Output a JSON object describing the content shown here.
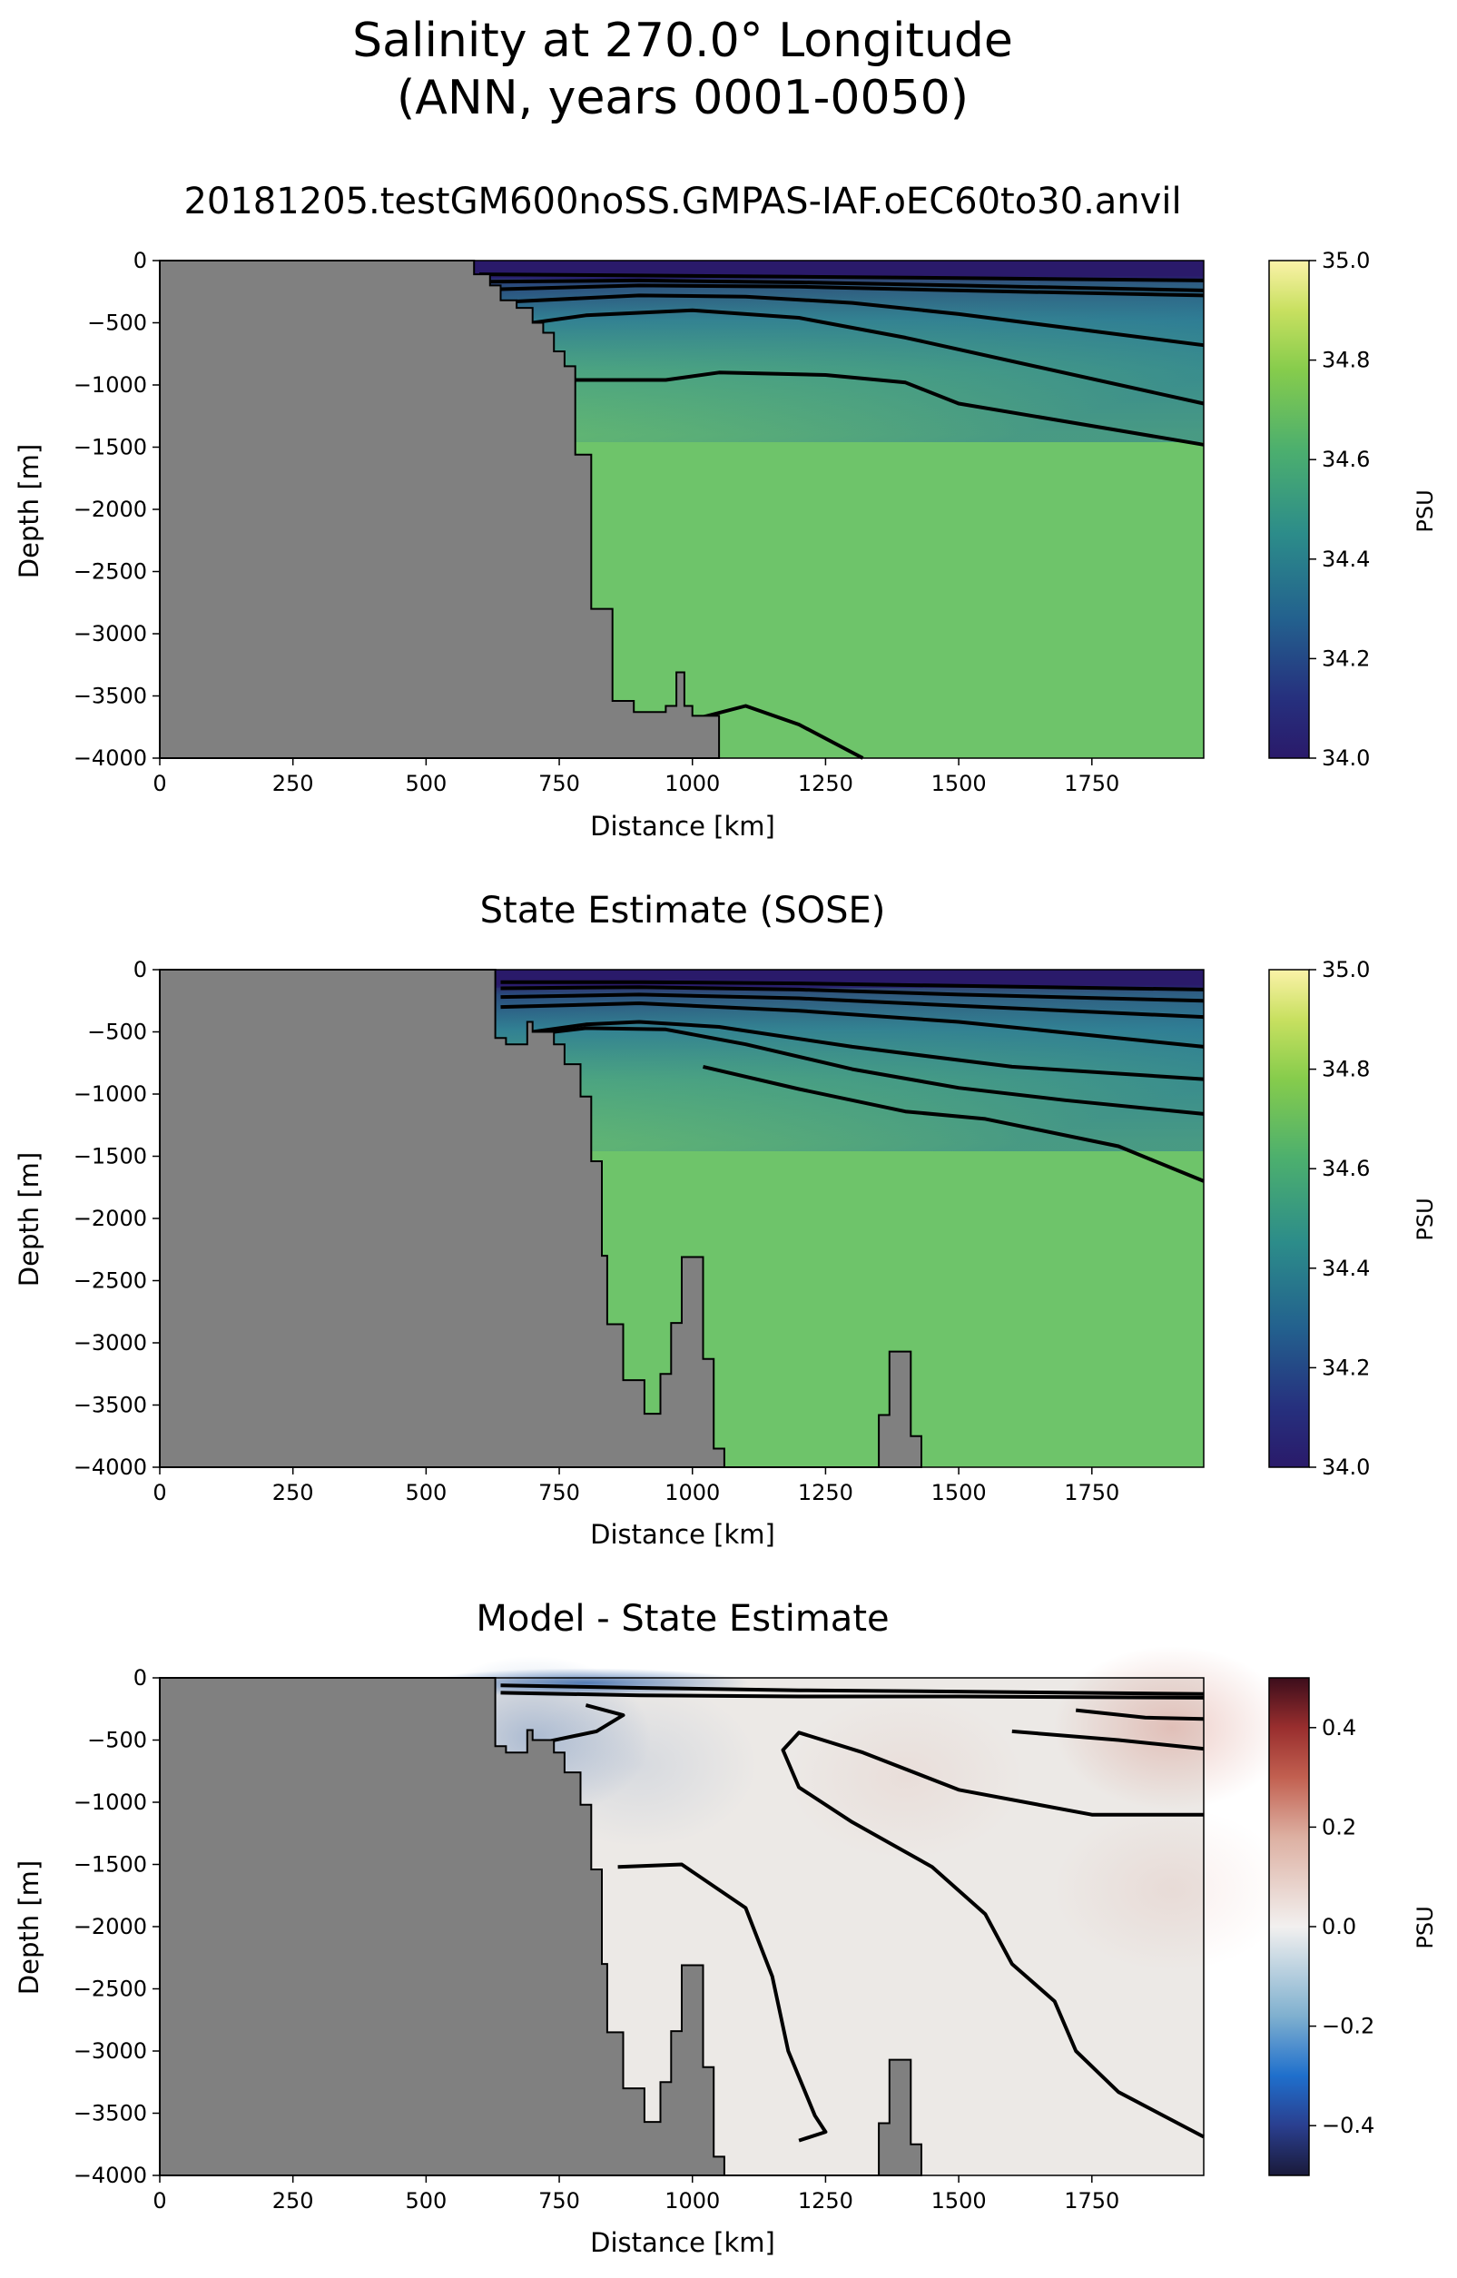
{
  "figure": {
    "title_line1": "Salinity at 270.0° Longitude",
    "title_line2": "(ANN, years 0001-0050)"
  },
  "panels": [
    {
      "title": "20181205.testGM600noSS.GMPAS-IAF.oEC60to30.anvil",
      "xlabel": "Distance [km]",
      "ylabel": "Depth [m]",
      "colorbar_label": "PSU",
      "colorbar_ticks": [
        "35.0",
        "34.8",
        "34.6",
        "34.4",
        "34.2",
        "34.0"
      ],
      "colormap": "haline"
    },
    {
      "title": "State Estimate (SOSE)",
      "xlabel": "Distance [km]",
      "ylabel": "Depth [m]",
      "colorbar_label": "PSU",
      "colorbar_ticks": [
        "35.0",
        "34.8",
        "34.6",
        "34.4",
        "34.2",
        "34.0"
      ],
      "colormap": "haline"
    },
    {
      "title": "Model - State Estimate",
      "xlabel": "Distance [km]",
      "ylabel": "Depth [m]",
      "colorbar_label": "PSU",
      "colorbar_ticks": [
        "0.4",
        "0.2",
        "0.0",
        "−0.2",
        "−0.4"
      ],
      "colormap": "balance"
    }
  ],
  "chart_data": [
    {
      "type": "heatmap",
      "title": "20181205.testGM600noSS.GMPAS-IAF.oEC60to30.anvil",
      "xlabel": "Distance [km]",
      "ylabel": "Depth [m]",
      "xlim": [
        0,
        1960
      ],
      "ylim": [
        -4000,
        0
      ],
      "x_ticks": [
        0,
        250,
        500,
        750,
        1000,
        1250,
        1500,
        1750
      ],
      "y_ticks": [
        0,
        -500,
        -1000,
        -1500,
        -2000,
        -2500,
        -3000,
        -3500,
        -4000
      ],
      "colorbar": {
        "label": "PSU",
        "range": [
          34.0,
          35.0
        ],
        "ticks": [
          34.0,
          34.2,
          34.4,
          34.6,
          34.8,
          35.0
        ]
      },
      "colors": {
        "fresh": "#2a1a6a",
        "mid": "#2a7898",
        "deep": "#6ec46a",
        "land": "#808080"
      },
      "bathymetry": [
        [
          0,
          0
        ],
        [
          590,
          0
        ],
        [
          590,
          -110
        ],
        [
          620,
          -110
        ],
        [
          620,
          -200
        ],
        [
          640,
          -200
        ],
        [
          640,
          -320
        ],
        [
          670,
          -320
        ],
        [
          670,
          -380
        ],
        [
          700,
          -380
        ],
        [
          700,
          -500
        ],
        [
          720,
          -500
        ],
        [
          720,
          -580
        ],
        [
          740,
          -580
        ],
        [
          740,
          -730
        ],
        [
          760,
          -730
        ],
        [
          760,
          -850
        ],
        [
          780,
          -850
        ],
        [
          780,
          -1560
        ],
        [
          810,
          -1560
        ],
        [
          810,
          -2800
        ],
        [
          850,
          -2800
        ],
        [
          850,
          -3540
        ],
        [
          890,
          -3540
        ],
        [
          890,
          -3630
        ],
        [
          950,
          -3630
        ],
        [
          950,
          -3580
        ],
        [
          970,
          -3580
        ],
        [
          970,
          -3310
        ],
        [
          985,
          -3310
        ],
        [
          985,
          -3580
        ],
        [
          1000,
          -3580
        ],
        [
          1000,
          -3660
        ],
        [
          1050,
          -3660
        ],
        [
          1050,
          -4000
        ],
        [
          0,
          -4000
        ]
      ],
      "contours": [
        [
          [
            600,
            -110
          ],
          [
            900,
            -120
          ],
          [
            1200,
            -130
          ],
          [
            1500,
            -140
          ],
          [
            1960,
            -160
          ]
        ],
        [
          [
            620,
            -170
          ],
          [
            900,
            -160
          ],
          [
            1200,
            -175
          ],
          [
            1500,
            -200
          ],
          [
            1960,
            -240
          ]
        ],
        [
          [
            640,
            -230
          ],
          [
            900,
            -200
          ],
          [
            1200,
            -210
          ],
          [
            1500,
            -240
          ],
          [
            1960,
            -280
          ]
        ],
        [
          [
            660,
            -330
          ],
          [
            900,
            -280
          ],
          [
            1100,
            -290
          ],
          [
            1300,
            -340
          ],
          [
            1500,
            -430
          ],
          [
            1960,
            -680
          ]
        ],
        [
          [
            700,
            -500
          ],
          [
            800,
            -440
          ],
          [
            1000,
            -400
          ],
          [
            1200,
            -460
          ],
          [
            1400,
            -620
          ],
          [
            1960,
            -1150
          ]
        ],
        [
          [
            780,
            -960
          ],
          [
            950,
            -960
          ],
          [
            1050,
            -900
          ],
          [
            1250,
            -920
          ],
          [
            1400,
            -980
          ],
          [
            1500,
            -1150
          ],
          [
            1960,
            -1480
          ]
        ],
        [
          [
            1010,
            -3680
          ],
          [
            1100,
            -3580
          ],
          [
            1200,
            -3730
          ],
          [
            1320,
            -4000
          ]
        ]
      ]
    },
    {
      "type": "heatmap",
      "title": "State Estimate (SOSE)",
      "xlabel": "Distance [km]",
      "ylabel": "Depth [m]",
      "xlim": [
        0,
        1960
      ],
      "ylim": [
        -4000,
        0
      ],
      "x_ticks": [
        0,
        250,
        500,
        750,
        1000,
        1250,
        1500,
        1750
      ],
      "y_ticks": [
        0,
        -500,
        -1000,
        -1500,
        -2000,
        -2500,
        -3000,
        -3500,
        -4000
      ],
      "colorbar": {
        "label": "PSU",
        "range": [
          34.0,
          35.0
        ],
        "ticks": [
          34.0,
          34.2,
          34.4,
          34.6,
          34.8,
          35.0
        ]
      },
      "colors": {
        "fresh": "#2a1a6a",
        "mid": "#2a7898",
        "deep": "#6ec46a",
        "land": "#808080"
      },
      "bathymetry": [
        [
          0,
          0
        ],
        [
          630,
          0
        ],
        [
          630,
          -550
        ],
        [
          650,
          -550
        ],
        [
          650,
          -600
        ],
        [
          690,
          -600
        ],
        [
          690,
          -420
        ],
        [
          700,
          -420
        ],
        [
          700,
          -500
        ],
        [
          740,
          -500
        ],
        [
          740,
          -600
        ],
        [
          760,
          -600
        ],
        [
          760,
          -760
        ],
        [
          790,
          -760
        ],
        [
          790,
          -1020
        ],
        [
          810,
          -1020
        ],
        [
          810,
          -1540
        ],
        [
          830,
          -1540
        ],
        [
          830,
          -2300
        ],
        [
          840,
          -2300
        ],
        [
          840,
          -2850
        ],
        [
          870,
          -2850
        ],
        [
          870,
          -3300
        ],
        [
          910,
          -3300
        ],
        [
          910,
          -3570
        ],
        [
          940,
          -3570
        ],
        [
          940,
          -3250
        ],
        [
          960,
          -3250
        ],
        [
          960,
          -2840
        ],
        [
          980,
          -2840
        ],
        [
          980,
          -2310
        ],
        [
          1020,
          -2310
        ],
        [
          1020,
          -3130
        ],
        [
          1040,
          -3130
        ],
        [
          1040,
          -3850
        ],
        [
          1060,
          -3850
        ],
        [
          1060,
          -4000
        ],
        [
          1350,
          -4000
        ],
        [
          1350,
          -3580
        ],
        [
          1370,
          -3580
        ],
        [
          1370,
          -3070
        ],
        [
          1410,
          -3070
        ],
        [
          1410,
          -3750
        ],
        [
          1430,
          -3750
        ],
        [
          1430,
          -4000
        ],
        [
          0,
          -4000
        ]
      ],
      "contours": [
        [
          [
            640,
            -100
          ],
          [
            900,
            -100
          ],
          [
            1200,
            -110
          ],
          [
            1500,
            -130
          ],
          [
            1960,
            -160
          ]
        ],
        [
          [
            640,
            -150
          ],
          [
            900,
            -140
          ],
          [
            1200,
            -160
          ],
          [
            1500,
            -200
          ],
          [
            1960,
            -250
          ]
        ],
        [
          [
            640,
            -220
          ],
          [
            900,
            -200
          ],
          [
            1200,
            -230
          ],
          [
            1500,
            -290
          ],
          [
            1960,
            -380
          ]
        ],
        [
          [
            640,
            -300
          ],
          [
            900,
            -270
          ],
          [
            1200,
            -330
          ],
          [
            1500,
            -420
          ],
          [
            1960,
            -620
          ]
        ],
        [
          [
            700,
            -500
          ],
          [
            800,
            -440
          ],
          [
            900,
            -420
          ],
          [
            1050,
            -460
          ],
          [
            1300,
            -620
          ],
          [
            1600,
            -780
          ],
          [
            1960,
            -880
          ]
        ],
        [
          [
            720,
            -510
          ],
          [
            800,
            -470
          ],
          [
            950,
            -480
          ],
          [
            1100,
            -600
          ],
          [
            1300,
            -800
          ],
          [
            1500,
            -950
          ],
          [
            1700,
            -1050
          ],
          [
            1960,
            -1160
          ]
        ],
        [
          [
            1020,
            -780
          ],
          [
            1200,
            -960
          ],
          [
            1400,
            -1140
          ],
          [
            1550,
            -1200
          ],
          [
            1800,
            -1420
          ],
          [
            1960,
            -1700
          ]
        ]
      ]
    },
    {
      "type": "heatmap",
      "title": "Model - State Estimate",
      "xlabel": "Distance [km]",
      "ylabel": "Depth [m]",
      "xlim": [
        0,
        1960
      ],
      "ylim": [
        -4000,
        0
      ],
      "x_ticks": [
        0,
        250,
        500,
        750,
        1000,
        1250,
        1500,
        1750
      ],
      "y_ticks": [
        0,
        -500,
        -1000,
        -1500,
        -2000,
        -2500,
        -3000,
        -3500,
        -4000
      ],
      "colorbar": {
        "label": "PSU",
        "range": [
          -0.5,
          0.5
        ],
        "ticks": [
          -0.4,
          -0.2,
          0.0,
          0.2,
          0.4
        ]
      },
      "colors": {
        "negative": "#2a5ea8",
        "near_zero": "#ece9e6",
        "positive": "#c96a5a",
        "land": "#808080"
      },
      "bathymetry": [
        [
          0,
          0
        ],
        [
          630,
          0
        ],
        [
          630,
          -550
        ],
        [
          650,
          -550
        ],
        [
          650,
          -600
        ],
        [
          690,
          -600
        ],
        [
          690,
          -420
        ],
        [
          700,
          -420
        ],
        [
          700,
          -500
        ],
        [
          740,
          -500
        ],
        [
          740,
          -600
        ],
        [
          760,
          -600
        ],
        [
          760,
          -760
        ],
        [
          790,
          -760
        ],
        [
          790,
          -1020
        ],
        [
          810,
          -1020
        ],
        [
          810,
          -1540
        ],
        [
          830,
          -1540
        ],
        [
          830,
          -2300
        ],
        [
          840,
          -2300
        ],
        [
          840,
          -2850
        ],
        [
          870,
          -2850
        ],
        [
          870,
          -3300
        ],
        [
          910,
          -3300
        ],
        [
          910,
          -3570
        ],
        [
          940,
          -3570
        ],
        [
          940,
          -3250
        ],
        [
          960,
          -3250
        ],
        [
          960,
          -2840
        ],
        [
          980,
          -2840
        ],
        [
          980,
          -2310
        ],
        [
          1020,
          -2310
        ],
        [
          1020,
          -3130
        ],
        [
          1040,
          -3130
        ],
        [
          1040,
          -3850
        ],
        [
          1060,
          -3850
        ],
        [
          1060,
          -4000
        ],
        [
          1350,
          -4000
        ],
        [
          1350,
          -3580
        ],
        [
          1370,
          -3580
        ],
        [
          1370,
          -3070
        ],
        [
          1410,
          -3070
        ],
        [
          1410,
          -3750
        ],
        [
          1430,
          -3750
        ],
        [
          1430,
          -4000
        ],
        [
          0,
          -4000
        ]
      ],
      "contours": [
        [
          [
            640,
            -60
          ],
          [
            900,
            -80
          ],
          [
            1200,
            -100
          ],
          [
            1500,
            -110
          ],
          [
            1960,
            -130
          ]
        ],
        [
          [
            640,
            -120
          ],
          [
            900,
            -140
          ],
          [
            1200,
            -150
          ],
          [
            1500,
            -150
          ],
          [
            1960,
            -160
          ]
        ],
        [
          [
            720,
            -520
          ],
          [
            820,
            -430
          ],
          [
            870,
            -300
          ],
          [
            800,
            -220
          ]
        ],
        [
          [
            860,
            -1520
          ],
          [
            980,
            -1500
          ],
          [
            1100,
            -1850
          ],
          [
            1150,
            -2400
          ],
          [
            1180,
            -3000
          ],
          [
            1230,
            -3520
          ],
          [
            1250,
            -3650
          ],
          [
            1200,
            -3720
          ]
        ],
        [
          [
            1960,
            -1100
          ],
          [
            1750,
            -1100
          ],
          [
            1500,
            -900
          ],
          [
            1320,
            -600
          ],
          [
            1200,
            -440
          ],
          [
            1170,
            -580
          ],
          [
            1200,
            -880
          ],
          [
            1300,
            -1160
          ],
          [
            1450,
            -1520
          ],
          [
            1550,
            -1900
          ],
          [
            1600,
            -2300
          ],
          [
            1680,
            -2600
          ],
          [
            1720,
            -3000
          ],
          [
            1800,
            -3330
          ],
          [
            1960,
            -3690
          ]
        ],
        [
          [
            1720,
            -260
          ],
          [
            1850,
            -320
          ],
          [
            1960,
            -330
          ]
        ],
        [
          [
            1600,
            -430
          ],
          [
            1800,
            -500
          ],
          [
            1960,
            -570
          ]
        ]
      ],
      "anomalies": [
        {
          "x": 700,
          "y": -480,
          "value": -0.15
        },
        {
          "x": 900,
          "y": -700,
          "value": -0.05
        },
        {
          "x": 1400,
          "y": -800,
          "value": 0.04
        },
        {
          "x": 1900,
          "y": -400,
          "value": 0.15
        },
        {
          "x": 1900,
          "y": -1700,
          "value": 0.05
        },
        {
          "x": 800,
          "y": -40,
          "value": -0.35
        }
      ]
    }
  ]
}
